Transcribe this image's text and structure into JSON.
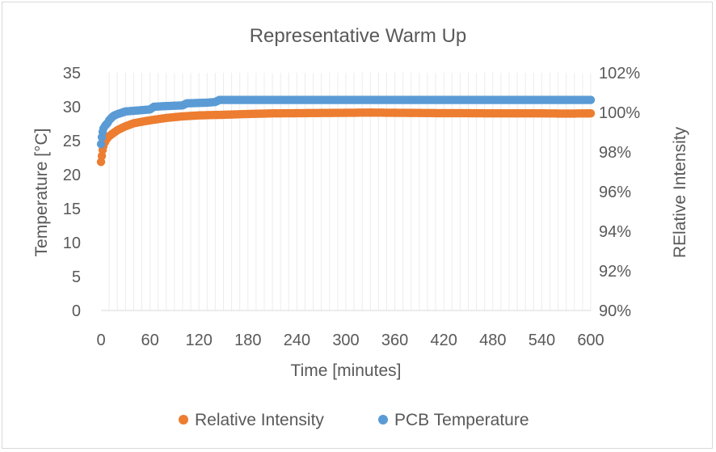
{
  "chart_data": {
    "type": "scatter",
    "title": "Representative Warm Up",
    "xlabel": "Time [minutes]",
    "ylabel_left": "Temperature [°C]",
    "ylabel_right": "RElative Intensity",
    "xlim": [
      0,
      600
    ],
    "ylim_left": [
      0,
      35
    ],
    "ylim_right": [
      0.9,
      1.02
    ],
    "x_ticks": [
      "0",
      "60",
      "120",
      "180",
      "240",
      "300",
      "360",
      "420",
      "480",
      "540",
      "600"
    ],
    "y_left_ticks": [
      "0",
      "5",
      "10",
      "15",
      "20",
      "25",
      "30",
      "35"
    ],
    "y_right_ticks": [
      "90%",
      "92%",
      "94%",
      "96%",
      "98%",
      "100%",
      "102%"
    ],
    "legend_position": "bottom",
    "series": [
      {
        "name": "Relative Intensity",
        "axis": "right",
        "color": "#ed7d31",
        "x": [
          0,
          1,
          2,
          3,
          5,
          7,
          10,
          15,
          20,
          30,
          40,
          50,
          60,
          80,
          100,
          120,
          150,
          180,
          210,
          240,
          270,
          300,
          330,
          360,
          390,
          420,
          450,
          480,
          510,
          540,
          570,
          600
        ],
        "values": [
          0.975,
          0.978,
          0.981,
          0.983,
          0.985,
          0.9865,
          0.988,
          0.9895,
          0.991,
          0.993,
          0.9945,
          0.9953,
          0.996,
          0.9972,
          0.998,
          0.9985,
          0.9988,
          0.9992,
          0.9995,
          0.9996,
          0.9997,
          0.9998,
          0.9999,
          0.9998,
          0.9997,
          0.9996,
          0.9996,
          0.9995,
          0.9995,
          0.9995,
          0.9994,
          0.9995
        ]
      },
      {
        "name": "PCB Temperature",
        "axis": "left",
        "color": "#5b9bd5",
        "x": [
          0,
          1,
          2,
          3,
          5,
          8,
          10,
          13,
          16,
          20,
          25,
          30,
          40,
          50,
          60,
          65,
          80,
          100,
          105,
          130,
          140,
          145,
          180,
          240,
          300,
          360,
          420,
          480,
          540,
          600
        ],
        "values": [
          24.5,
          25.5,
          26.3,
          26.8,
          27.2,
          27.6,
          28.0,
          28.4,
          28.7,
          28.9,
          29.1,
          29.3,
          29.4,
          29.5,
          29.6,
          30.0,
          30.1,
          30.2,
          30.5,
          30.6,
          30.7,
          31.0,
          31.0,
          31.0,
          31.0,
          31.0,
          31.0,
          31.0,
          31.0,
          31.0
        ]
      }
    ]
  }
}
